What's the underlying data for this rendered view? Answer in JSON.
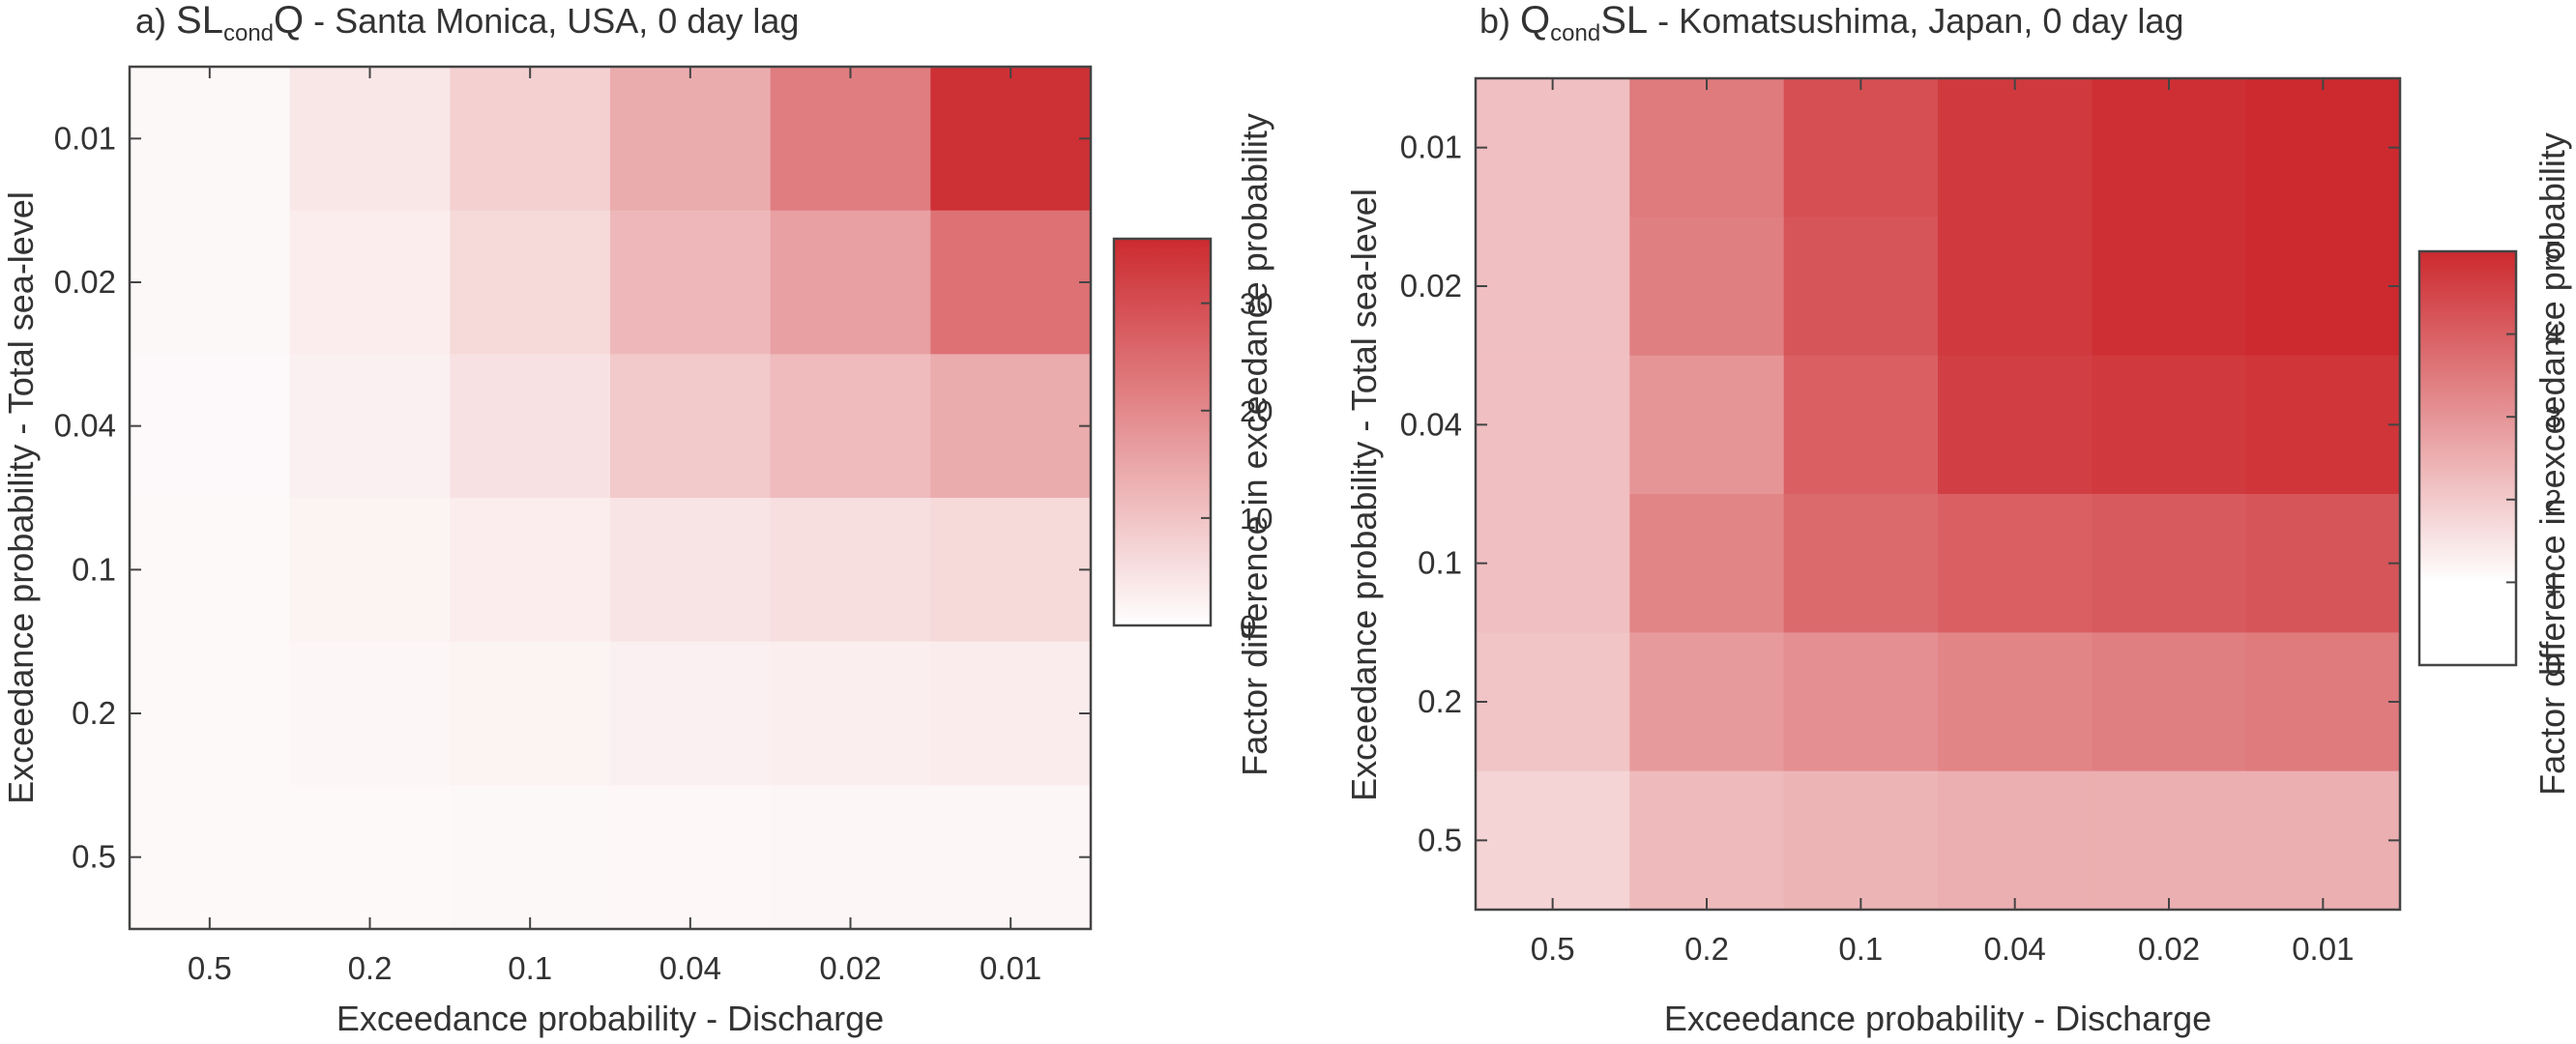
{
  "colors": {
    "low": "#ffffff",
    "high": "#cc2a2f",
    "axis": "#444444",
    "text": "#333333"
  },
  "chart_data": [
    {
      "type": "heatmap",
      "panel_label": "a)",
      "title_parts": {
        "main1": "SL",
        "sub1": "cond",
        "main2": "Q",
        "suffix": " - Santa Monica, USA, 0 day lag"
      },
      "xlabel": "Exceedance probability - Discharge",
      "ylabel": "Exceedance probability - Total sea-level",
      "x_categories": [
        "0.5",
        "0.2",
        "0.1",
        "0.04",
        "0.02",
        "0.01"
      ],
      "y_categories": [
        "0.01",
        "0.02",
        "0.04",
        "0.1",
        "0.2",
        "0.5"
      ],
      "values": [
        [
          1.2,
          4.0,
          8.0,
          14.0,
          22.0,
          35.0
        ],
        [
          1.2,
          3.0,
          6.5,
          12.0,
          16.0,
          24.0
        ],
        [
          1.1,
          2.5,
          5.0,
          9.0,
          11.5,
          14.0
        ],
        [
          1.0,
          2.0,
          3.0,
          4.5,
          5.5,
          6.5
        ],
        [
          1.0,
          1.5,
          2.0,
          2.5,
          2.8,
          3.2
        ],
        [
          1.0,
          1.0,
          1.2,
          1.4,
          1.5,
          1.6
        ]
      ],
      "colorbar": {
        "label": "Factor difference in exceedance probability",
        "vmin": 0,
        "vmax": 36,
        "ticks": [
          "0",
          "10",
          "20",
          "30"
        ],
        "tick_values": [
          0,
          10,
          20,
          30
        ]
      }
    },
    {
      "type": "heatmap",
      "panel_label": "b)",
      "title_parts": {
        "main1": "Q",
        "sub1": "cond",
        "main2": "SL",
        "suffix": " - Komatsushima, Japan, 0 day lag"
      },
      "xlabel": "Exceedance probability - Discharge",
      "ylabel": "Exceedance probability - Total sea-level",
      "x_categories": [
        "0.5",
        "0.2",
        "0.1",
        "0.04",
        "0.02",
        "0.01"
      ],
      "y_categories": [
        "0.01",
        "0.02",
        "0.04",
        "0.1",
        "0.2",
        "0.5"
      ],
      "values": [
        [
          2.2,
          3.5,
          4.3,
          4.7,
          4.9,
          5.0
        ],
        [
          2.2,
          3.4,
          4.2,
          4.7,
          4.9,
          5.0
        ],
        [
          2.2,
          3.0,
          4.0,
          4.6,
          4.7,
          4.8
        ],
        [
          2.2,
          3.3,
          3.8,
          4.0,
          4.1,
          4.2
        ],
        [
          2.1,
          2.9,
          3.1,
          3.3,
          3.4,
          3.5
        ],
        [
          1.8,
          2.3,
          2.4,
          2.5,
          2.5,
          2.5
        ]
      ],
      "colorbar": {
        "label": "Factor difference in exceedance probability",
        "vmin": 0,
        "vmax": 5,
        "ticks": [
          "0",
          "1",
          "2",
          "3",
          "4",
          "5"
        ],
        "tick_values": [
          0,
          1,
          2,
          3,
          4,
          5
        ]
      }
    }
  ]
}
